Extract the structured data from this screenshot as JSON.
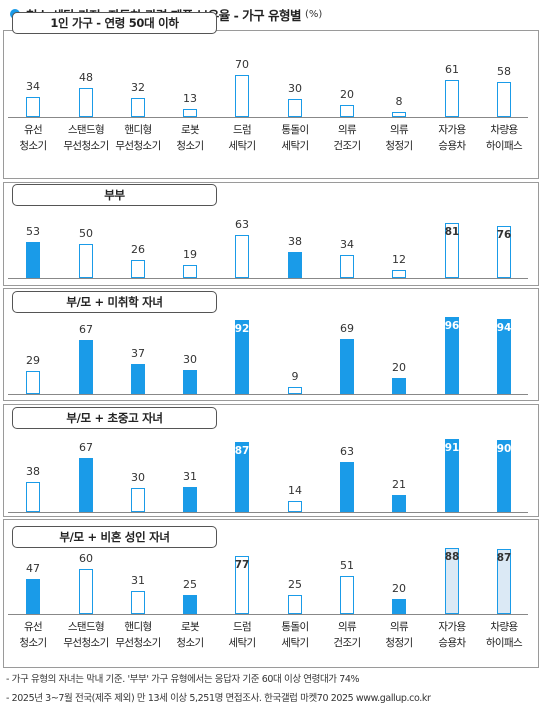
{
  "title": "청소·세탁 가전, 자동차 관련 제품 보유율 - 가구 유형별",
  "unit": "(%)",
  "categories": [
    [
      "유선",
      "청소기"
    ],
    [
      "스탠드형",
      "무선청소기"
    ],
    [
      "핸디형",
      "무선청소기"
    ],
    [
      "로봇",
      "청소기"
    ],
    [
      "드럼",
      "세탁기"
    ],
    [
      "통돌이",
      "세탁기"
    ],
    [
      "의류",
      "건조기"
    ],
    [
      "의류",
      "청정기"
    ],
    [
      "자가용",
      "승용차"
    ],
    [
      "차량용",
      "하이패스"
    ]
  ],
  "colors": {
    "accent": "#1a9be8",
    "outline": "#1a9be8",
    "pale": "#dbe9f5",
    "header_dot": "#1a9be8"
  },
  "chart_data": {
    "type": "bar",
    "categories": [
      "유선 청소기",
      "스탠드형 무선청소기",
      "핸디형 무선청소기",
      "로봇 청소기",
      "드럼 세탁기",
      "통돌이 세탁기",
      "의류 건조기",
      "의류 청정기",
      "자가용 승용차",
      "차량용 하이패스"
    ],
    "series": [
      {
        "name": "1인 가구 - 연령 50대 이하",
        "values": [
          34,
          48,
          32,
          13,
          70,
          30,
          20,
          8,
          61,
          58
        ],
        "styles": [
          "outline",
          "outline",
          "outline",
          "outline",
          "outline",
          "outline",
          "outline",
          "outline",
          "outline",
          "outline"
        ]
      },
      {
        "name": "부부",
        "values": [
          53,
          50,
          26,
          19,
          63,
          38,
          34,
          12,
          81,
          76
        ],
        "styles": [
          "filled",
          "outline",
          "outline",
          "outline",
          "outline",
          "filled",
          "outline",
          "outline",
          "outline",
          "outline"
        ]
      },
      {
        "name": "부/모 + 미취학 자녀",
        "values": [
          29,
          67,
          37,
          30,
          92,
          9,
          69,
          20,
          96,
          94
        ],
        "styles": [
          "outline",
          "filled",
          "filled",
          "filled",
          "filled",
          "outline",
          "filled",
          "filled",
          "filled",
          "filled"
        ]
      },
      {
        "name": "부/모 + 초중고 자녀",
        "values": [
          38,
          67,
          30,
          31,
          87,
          14,
          63,
          21,
          91,
          90
        ],
        "styles": [
          "outline",
          "filled",
          "outline",
          "filled",
          "filled",
          "outline",
          "filled",
          "filled",
          "filled",
          "filled"
        ]
      },
      {
        "name": "부/모 + 비혼 성인 자녀",
        "values": [
          47,
          60,
          31,
          25,
          77,
          25,
          51,
          20,
          88,
          87
        ],
        "styles": [
          "filled",
          "outline",
          "outline",
          "filled",
          "outline",
          "outline",
          "outline",
          "filled",
          "pale",
          "pale"
        ]
      }
    ],
    "ylim": [
      0,
      100
    ]
  },
  "footnotes": [
    "- 가구 유형의 자녀는 막내 기준. '부부' 가구 유형에서는 응답자 기준 60대 이상 연령대가 74%",
    "- 2025년 3~7월 전국(제주 제외) 만 13세 이상 5,251명 면접조사. 한국갤럽 마켓70 2025 www.gallup.co.kr"
  ]
}
